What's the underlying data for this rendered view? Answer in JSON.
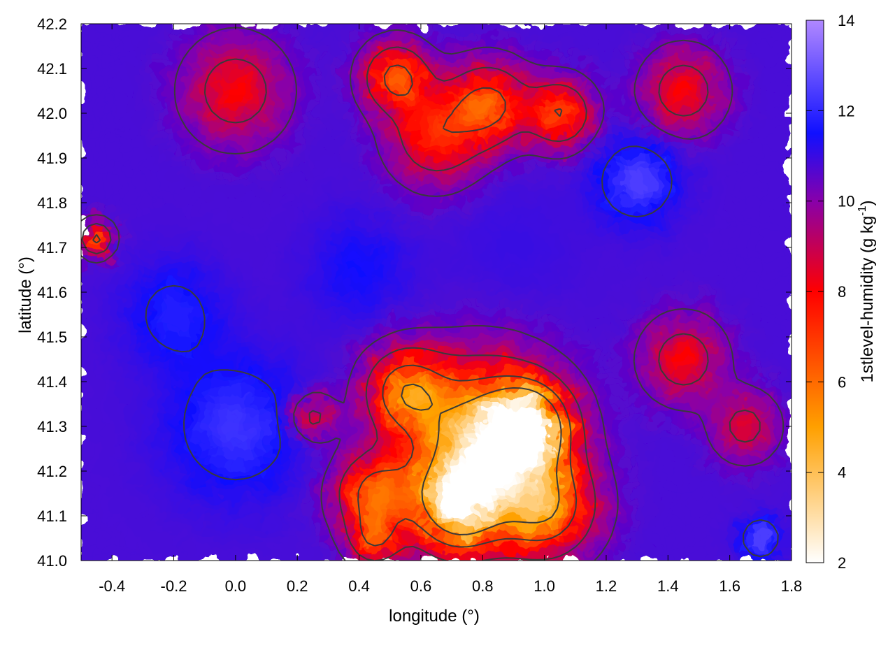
{
  "chart_data": {
    "type": "heatmap",
    "title": "",
    "xlabel": "longitude (°)",
    "ylabel": "latitude (°)",
    "xlim": [
      -0.5,
      1.8
    ],
    "ylim": [
      41.0,
      42.2
    ],
    "x_ticks": [
      "-0.4",
      "-0.2",
      "0.0",
      "0.2",
      "0.4",
      "0.6",
      "0.8",
      "1.0",
      "1.2",
      "1.4",
      "1.6",
      "1.8"
    ],
    "y_ticks": [
      "41.0",
      "41.1",
      "41.2",
      "41.3",
      "41.4",
      "41.5",
      "41.6",
      "41.7",
      "41.8",
      "41.9",
      "42.0",
      "42.1",
      "42.2"
    ],
    "colorbar": {
      "label": "1stlevel-humidity (g kg",
      "label_sup": "-1",
      "label_tail": ")",
      "range": [
        2,
        14
      ],
      "ticks": [
        "2",
        "4",
        "6",
        "8",
        "10",
        "12",
        "14"
      ],
      "palette": [
        {
          "value": 2,
          "color": "#ffffff"
        },
        {
          "value": 5,
          "color": "#ffa000"
        },
        {
          "value": 8,
          "color": "#ff0000"
        },
        {
          "value": 10,
          "color": "#8800aa"
        },
        {
          "value": 11.5,
          "color": "#1010ff"
        },
        {
          "value": 14,
          "color": "#b088ff"
        }
      ]
    },
    "contour_color": "#3a3a3a",
    "humidity_regions": [
      {
        "lon": 0.8,
        "lat": 41.27,
        "value": 3.5,
        "spread": 0.22
      },
      {
        "lon": 0.95,
        "lat": 41.3,
        "value": 3.2,
        "spread": 0.12
      },
      {
        "lon": 0.72,
        "lat": 41.12,
        "value": 4.0,
        "spread": 0.14
      },
      {
        "lon": 1.0,
        "lat": 41.12,
        "value": 5.5,
        "spread": 0.15
      },
      {
        "lon": 0.55,
        "lat": 41.38,
        "value": 6.0,
        "spread": 0.12
      },
      {
        "lon": 0.45,
        "lat": 41.15,
        "value": 6.5,
        "spread": 0.12
      },
      {
        "lon": 0.82,
        "lat": 42.02,
        "value": 6.5,
        "spread": 0.12
      },
      {
        "lon": 0.52,
        "lat": 42.08,
        "value": 6.5,
        "spread": 0.1
      },
      {
        "lon": 1.05,
        "lat": 42.0,
        "value": 7.0,
        "spread": 0.1
      },
      {
        "lon": 0.65,
        "lat": 41.95,
        "value": 7.5,
        "spread": 0.14
      },
      {
        "lon": -0.45,
        "lat": 41.72,
        "value": 6.5,
        "spread": 0.05
      },
      {
        "lon": 0.0,
        "lat": 42.05,
        "value": 8.0,
        "spread": 0.15
      },
      {
        "lon": 1.45,
        "lat": 42.05,
        "value": 8.0,
        "spread": 0.12
      },
      {
        "lon": 1.45,
        "lat": 41.45,
        "value": 8.0,
        "spread": 0.12
      },
      {
        "lon": 1.65,
        "lat": 41.3,
        "value": 8.5,
        "spread": 0.1
      },
      {
        "lon": 0.25,
        "lat": 41.32,
        "value": 8.5,
        "spread": 0.07
      },
      {
        "lon": 0.45,
        "lat": 41.05,
        "value": 7.5,
        "spread": 0.08
      },
      {
        "lon": 1.3,
        "lat": 41.85,
        "value": 12.5,
        "spread": 0.12
      },
      {
        "lon": 0.0,
        "lat": 41.3,
        "value": 12.2,
        "spread": 0.2
      },
      {
        "lon": -0.2,
        "lat": 41.55,
        "value": 11.8,
        "spread": 0.15
      },
      {
        "lon": 0.4,
        "lat": 41.65,
        "value": 11.5,
        "spread": 0.15
      },
      {
        "lon": 1.7,
        "lat": 41.05,
        "value": 12.5,
        "spread": 0.06
      },
      {
        "lon": 0.9,
        "lat": 41.7,
        "value": 11.0,
        "spread": 0.2
      }
    ],
    "background_value": 10.8
  }
}
